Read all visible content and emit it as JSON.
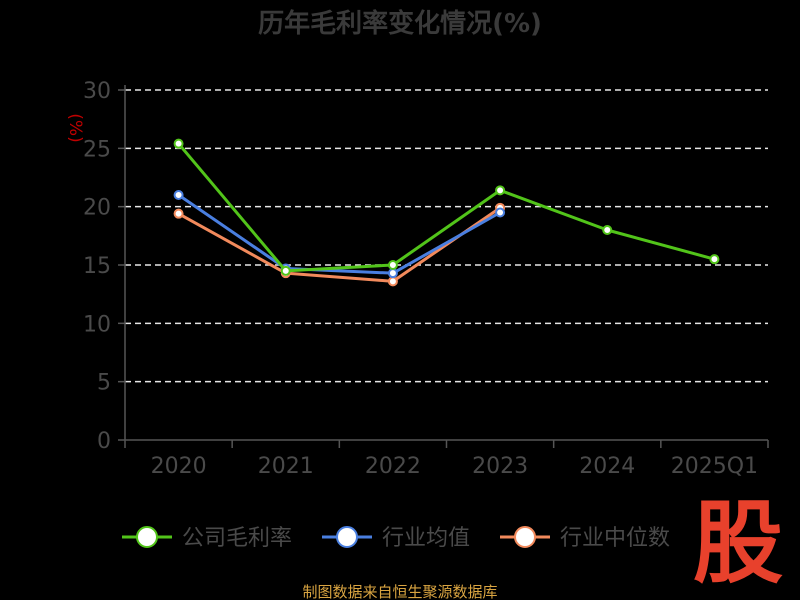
{
  "chart_data": {
    "type": "line",
    "title": "历年毛利率变化情况(%)",
    "ylabel": "(%)",
    "categories": [
      "2020",
      "2021",
      "2022",
      "2023",
      "2024",
      "2025Q1"
    ],
    "ylim": [
      0,
      30
    ],
    "yticks": [
      0,
      5,
      10,
      15,
      20,
      25,
      30
    ],
    "grid": true,
    "legend_position": "bottom",
    "series": [
      {
        "name": "公司毛利率",
        "color": "#52c41a",
        "values": [
          25.4,
          14.5,
          15.0,
          21.4,
          18.0,
          15.5
        ]
      },
      {
        "name": "行业均值",
        "color": "#4a7fe0",
        "values": [
          21.0,
          14.7,
          14.3,
          19.5,
          null,
          null
        ]
      },
      {
        "name": "行业中位数",
        "color": "#f28a5c",
        "values": [
          19.4,
          14.3,
          13.6,
          19.9,
          null,
          null
        ]
      }
    ]
  },
  "footer": {
    "source": "制图数据来自恒生聚源数据库",
    "logo_text": "股"
  }
}
